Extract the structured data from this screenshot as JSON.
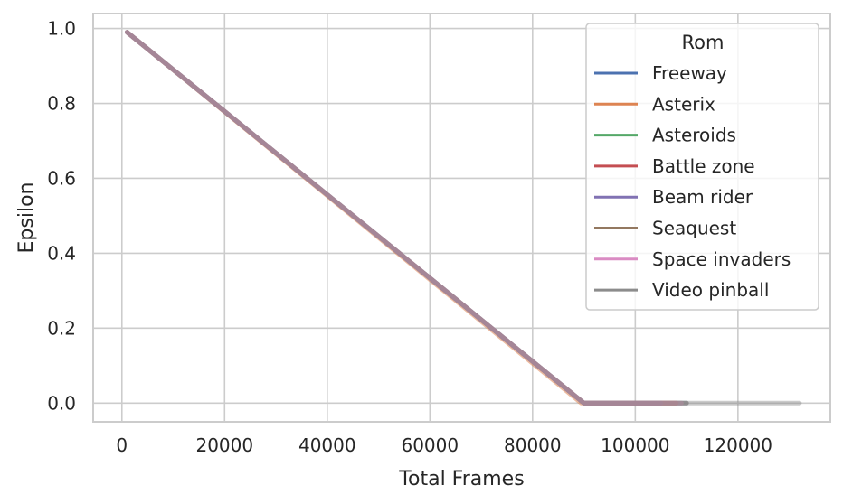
{
  "chart_data": {
    "type": "line",
    "title": "",
    "xlabel": "Total Frames",
    "ylabel": "Epsilon",
    "xlim": [
      -5600,
      138000
    ],
    "ylim": [
      -0.05,
      1.04
    ],
    "xticks": [
      0,
      20000,
      40000,
      60000,
      80000,
      100000,
      120000
    ],
    "xtick_labels": [
      "0",
      "20000",
      "40000",
      "60000",
      "80000",
      "100000",
      "120000"
    ],
    "yticks": [
      0.0,
      0.2,
      0.4,
      0.6,
      0.8,
      1.0
    ],
    "ytick_labels": [
      "0.0",
      "0.2",
      "0.4",
      "0.6",
      "0.8",
      "1.0"
    ],
    "grid": true,
    "legend": {
      "title": "Rom",
      "placement": "top-right"
    },
    "series": [
      {
        "name": "Freeway",
        "color": "#4c72b0",
        "x": [
          1000,
          90000,
          110000
        ],
        "y": [
          0.99,
          0.0,
          0.0
        ]
      },
      {
        "name": "Asterix",
        "color": "#dd8452",
        "x": [
          1000,
          89500,
          108000
        ],
        "y": [
          0.99,
          0.0,
          0.0
        ]
      },
      {
        "name": "Asteroids",
        "color": "#55a868",
        "x": [
          1000,
          90000,
          109000
        ],
        "y": [
          0.99,
          0.0,
          0.0
        ]
      },
      {
        "name": "Battle zone",
        "color": "#c44e52",
        "x": [
          1000,
          90000,
          108000
        ],
        "y": [
          0.99,
          0.0,
          0.0
        ]
      },
      {
        "name": "Beam rider",
        "color": "#8172b3",
        "x": [
          1000,
          90000,
          105000
        ],
        "y": [
          0.99,
          0.0,
          0.0
        ]
      },
      {
        "name": "Seaquest",
        "color": "#937860",
        "x": [
          1000,
          90000,
          110000
        ],
        "y": [
          0.99,
          0.0,
          0.0
        ]
      },
      {
        "name": "Space invaders",
        "color": "#da8bc3",
        "x": [
          1000,
          90000,
          109000
        ],
        "y": [
          0.99,
          0.0,
          0.0
        ]
      },
      {
        "name": "Video pinball",
        "color": "#8c8c8c",
        "x": [
          1000,
          90000,
          132000
        ],
        "y": [
          0.99,
          0.0,
          0.0
        ]
      }
    ]
  }
}
